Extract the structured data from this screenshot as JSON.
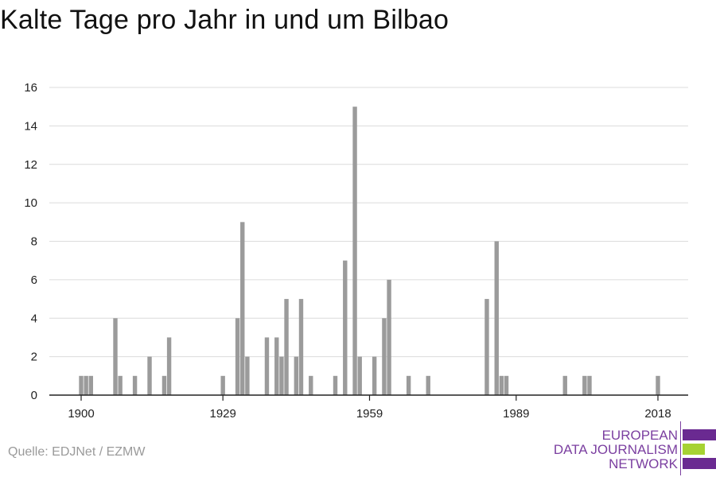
{
  "chart_data": {
    "type": "bar",
    "title": "Kalte Tage pro Jahr in und um Bilbao",
    "xlabel": "",
    "ylabel": "",
    "x_ticks": [
      1900,
      1929,
      1959,
      1989,
      2018
    ],
    "y_ticks": [
      0,
      2,
      4,
      6,
      8,
      10,
      12,
      14,
      16
    ],
    "xlim": [
      1894,
      2024
    ],
    "ylim": [
      0,
      16
    ],
    "grid": true,
    "bar_color": "#9b9b9b",
    "x": [
      1900,
      1901,
      1902,
      1907,
      1908,
      1911,
      1914,
      1917,
      1918,
      1929,
      1932,
      1933,
      1934,
      1938,
      1940,
      1941,
      1942,
      1944,
      1945,
      1947,
      1952,
      1954,
      1956,
      1957,
      1960,
      1962,
      1963,
      1967,
      1971,
      1983,
      1985,
      1986,
      1987,
      1999,
      2003,
      2004,
      2018
    ],
    "values": [
      1,
      1,
      1,
      4,
      1,
      1,
      2,
      1,
      3,
      1,
      4,
      9,
      2,
      3,
      3,
      2,
      5,
      2,
      5,
      1,
      1,
      7,
      15,
      2,
      2,
      4,
      6,
      1,
      1,
      5,
      8,
      1,
      1,
      1,
      1,
      1,
      1
    ]
  },
  "title": "Kalte Tage pro Jahr in und um Bilbao",
  "source": "Quelle: EDJNet / EZMW",
  "logo": {
    "line1": "EUROPEAN",
    "line2": "DATA JOURNALISM",
    "line3": "NETWORK"
  }
}
